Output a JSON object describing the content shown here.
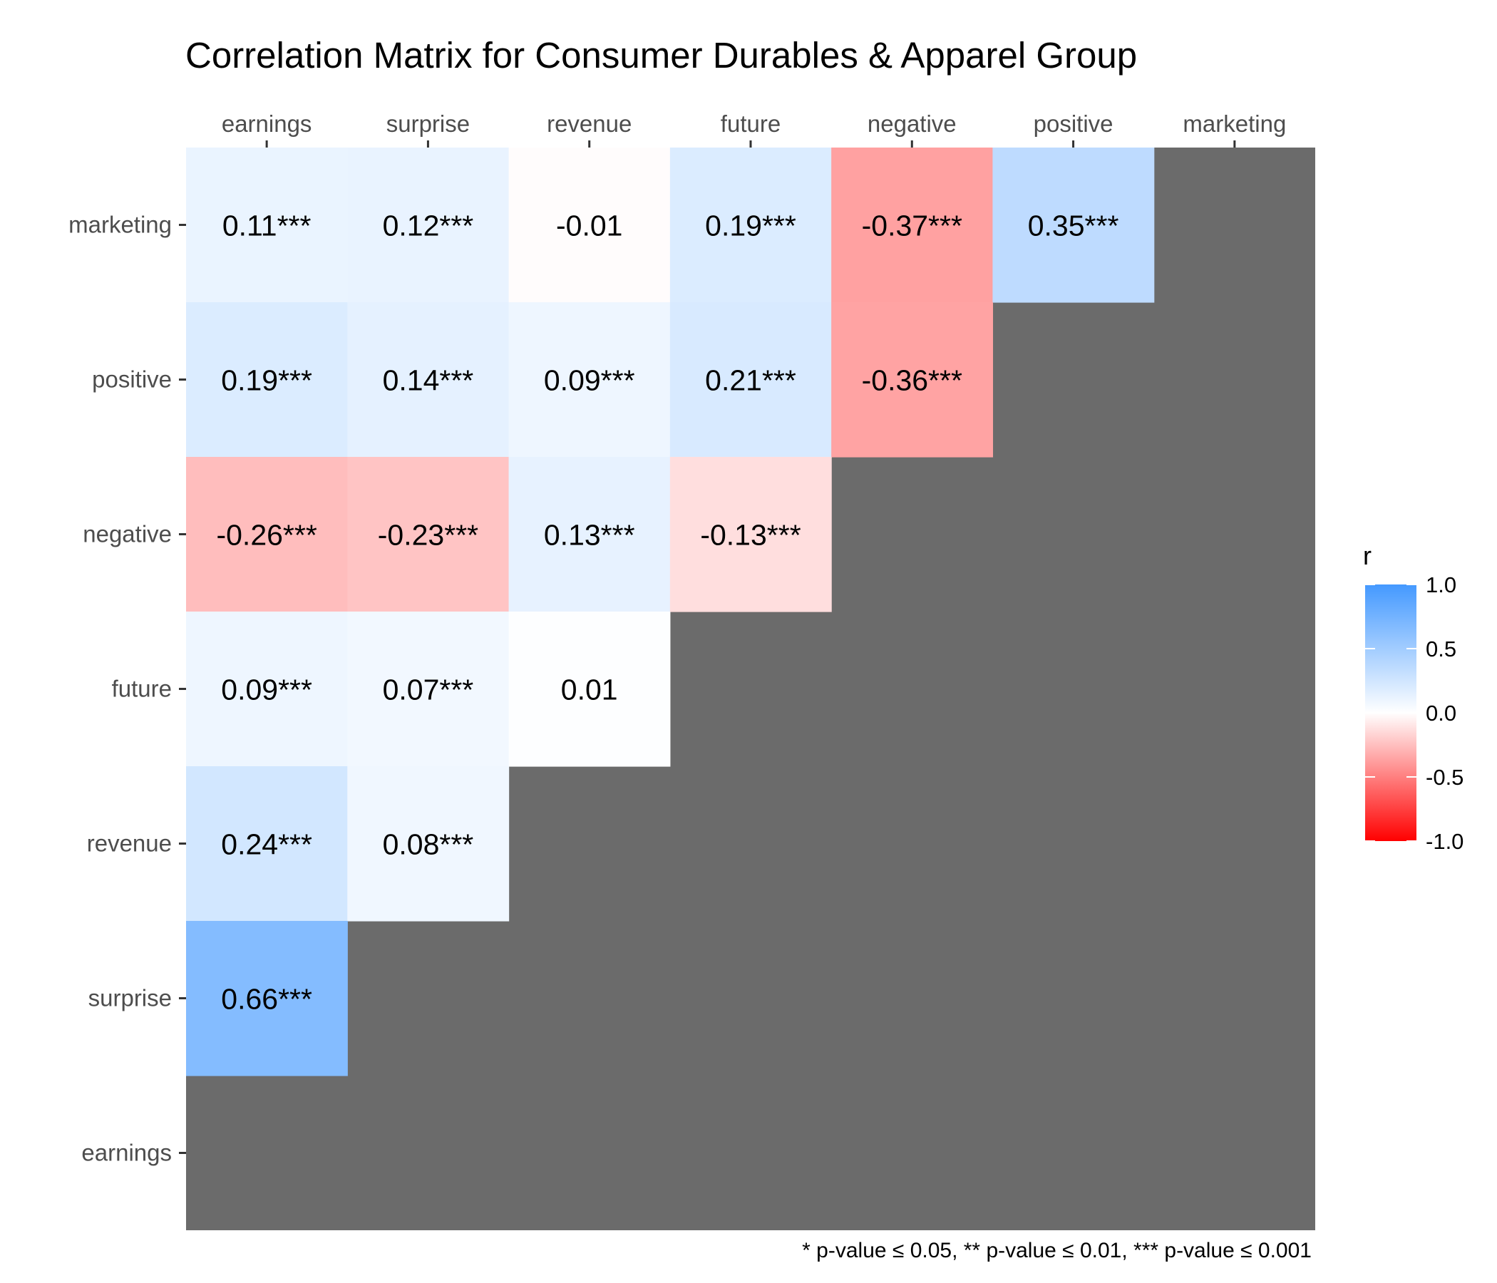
{
  "chart_data": {
    "type": "heatmap",
    "title": "Correlation Matrix for Consumer Durables & Apparel Group",
    "x_labels": [
      "earnings",
      "surprise",
      "revenue",
      "future",
      "negative",
      "positive",
      "marketing"
    ],
    "y_labels": [
      "marketing",
      "positive",
      "negative",
      "future",
      "revenue",
      "surprise",
      "earnings"
    ],
    "cells": [
      {
        "row": "marketing",
        "col": "earnings",
        "value": 0.11,
        "label": "0.11***"
      },
      {
        "row": "marketing",
        "col": "surprise",
        "value": 0.12,
        "label": "0.12***"
      },
      {
        "row": "marketing",
        "col": "revenue",
        "value": -0.01,
        "label": "-0.01"
      },
      {
        "row": "marketing",
        "col": "future",
        "value": 0.19,
        "label": "0.19***"
      },
      {
        "row": "marketing",
        "col": "negative",
        "value": -0.37,
        "label": "-0.37***"
      },
      {
        "row": "marketing",
        "col": "positive",
        "value": 0.35,
        "label": "0.35***"
      },
      {
        "row": "positive",
        "col": "earnings",
        "value": 0.19,
        "label": "0.19***"
      },
      {
        "row": "positive",
        "col": "surprise",
        "value": 0.14,
        "label": "0.14***"
      },
      {
        "row": "positive",
        "col": "revenue",
        "value": 0.09,
        "label": "0.09***"
      },
      {
        "row": "positive",
        "col": "future",
        "value": 0.21,
        "label": "0.21***"
      },
      {
        "row": "positive",
        "col": "negative",
        "value": -0.36,
        "label": "-0.36***"
      },
      {
        "row": "negative",
        "col": "earnings",
        "value": -0.26,
        "label": "-0.26***"
      },
      {
        "row": "negative",
        "col": "surprise",
        "value": -0.23,
        "label": "-0.23***"
      },
      {
        "row": "negative",
        "col": "revenue",
        "value": 0.13,
        "label": "0.13***"
      },
      {
        "row": "negative",
        "col": "future",
        "value": -0.13,
        "label": "-0.13***"
      },
      {
        "row": "future",
        "col": "earnings",
        "value": 0.09,
        "label": "0.09***"
      },
      {
        "row": "future",
        "col": "surprise",
        "value": 0.07,
        "label": "0.07***"
      },
      {
        "row": "future",
        "col": "revenue",
        "value": 0.01,
        "label": "0.01"
      },
      {
        "row": "revenue",
        "col": "earnings",
        "value": 0.24,
        "label": "0.24***"
      },
      {
        "row": "revenue",
        "col": "surprise",
        "value": 0.08,
        "label": "0.08***"
      },
      {
        "row": "surprise",
        "col": "earnings",
        "value": 0.66,
        "label": "0.66***"
      }
    ],
    "legend": {
      "title": "r",
      "placement": "right",
      "range": [
        -1.0,
        1.0
      ],
      "ticks": [
        "1.0",
        "0.5",
        "0.0",
        "-0.5",
        "-1.0"
      ],
      "colors": {
        "low": "#ff0000",
        "mid": "#ffffff",
        "high": "#4499ff"
      }
    },
    "x_axis_position": "top",
    "grid": false,
    "missing_color": "#6b6b6b",
    "caption": "* p-value ≤ 0.05, ** p-value ≤ 0.01, *** p-value ≤ 0.001"
  }
}
